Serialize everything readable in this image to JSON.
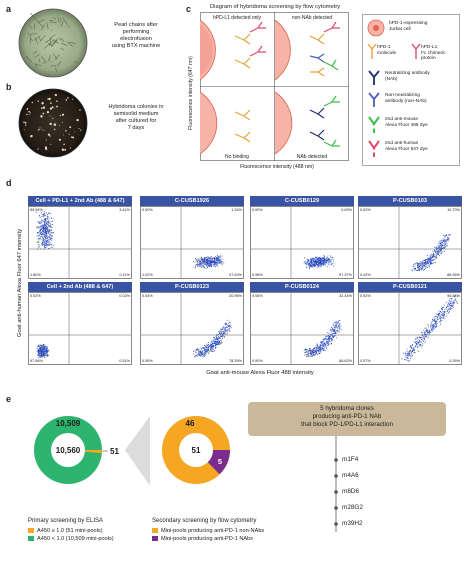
{
  "panel_a": {
    "label": "a",
    "caption": [
      "Pearl chains after",
      "performing",
      "electrofusion",
      "using BTX machine"
    ]
  },
  "panel_b": {
    "label": "b",
    "caption": [
      "Hybridoma colonies in",
      "semisolid medium",
      "after cultured for",
      "7 days"
    ]
  },
  "panel_c": {
    "label": "c",
    "title": "Diagram of hybridoma screening by flow cytometry",
    "quadrants": {
      "tl": "hPD-L1 detected only",
      "tr": "non-NAb detected",
      "bl": "No binding",
      "br": "NAb detected"
    },
    "ylabel": "Fluorescence intensity (647 nm)",
    "xlabel": "Fluorescence intensity (488 nm)",
    "legend": [
      {
        "icon": "jurkat-cell-icon",
        "text": [
          "hPD-1-expressing",
          "Jurkat cell"
        ]
      },
      {
        "icon": "pdl1-molecule-icon",
        "text": [
          "hPD-1",
          "molecule"
        ]
      },
      {
        "icon": "pdl1-fc-icon",
        "text": [
          "hPD-L1",
          "Fc chimeric",
          "protein"
        ]
      },
      {
        "icon": "nab-icon",
        "text": [
          "Neutralizing antibody",
          "(NAb)"
        ]
      },
      {
        "icon": "non-nab-icon",
        "text": [
          "Non-neutralizing",
          "antibody (non-NAb)"
        ]
      },
      {
        "icon": "anti-mouse-icon",
        "text": [
          "2nd anti-mouse",
          "Alexa Fluor 488 dye"
        ]
      },
      {
        "icon": "anti-human-icon",
        "text": [
          "2nd anti-human",
          "Alexa Fluor 647 dye"
        ]
      }
    ],
    "colors": {
      "cell": "#f08a7a",
      "cellEdge": "#e0634f",
      "pdl1": "#e04a6a",
      "nab": "#1f2f6b",
      "nonnab": "#4b5fb8",
      "green": "#3fbf4a",
      "orange": "#e8a13a"
    }
  },
  "panel_d": {
    "label": "d",
    "ylabel": "Goat anti-human Alexa Fluor 647 intensity",
    "xlabel": "Goat anti-mouse Alexa Fluor 488 intensity",
    "plots": [
      {
        "title": "Cell + PD-L1 + 2nd Ab (488 & 647)",
        "q": [
          "89.94%",
          "3.41%",
          "1.80%",
          "0.11%"
        ]
      },
      {
        "title": "C-CUSB1926",
        "q": [
          "0.00%",
          "1.34%",
          "1.02%",
          "97.63%"
        ]
      },
      {
        "title": "C-CUSB0129",
        "q": [
          "0.00%",
          "0.63%",
          "0.96%",
          "97.37%"
        ]
      },
      {
        "title": "P-CUSB0103",
        "q": [
          "0.92%",
          "10.70%",
          "0.42%",
          "88.96%"
        ]
      },
      {
        "title": "Cell + 2nd Ab (488 & 647)",
        "q": [
          "0.02%",
          "0.02%",
          "97.96%",
          "0.51%"
        ]
      },
      {
        "title": "P-CUSB0123",
        "q": [
          "0.04%",
          "20.96%",
          "0.59%",
          "78.39%"
        ]
      },
      {
        "title": "P-CUSB0124",
        "q": [
          "0.06%",
          "32.44%",
          "0.90%",
          "66.62%"
        ]
      },
      {
        "title": "P-CUSB0121",
        "q": [
          "0.92%",
          "96.84%",
          "0.57%",
          "0.26%"
        ]
      }
    ]
  },
  "panel_e": {
    "label": "e",
    "donut1": {
      "outer": "10,509",
      "center": "10,560",
      "callout": "51",
      "colors": {
        "green": "#2db46e",
        "orange": "#f5a623"
      }
    },
    "donut2": {
      "top": "46",
      "center": "51",
      "slice": "5",
      "colors": {
        "orange": "#f5a623",
        "purple": "#7a2d8c"
      }
    },
    "callout_box": [
      "5 hybridoma clones",
      "producing anti-PD-1 NAb",
      "that block PD-1/PD-L1 interaction"
    ],
    "clones": [
      "m1F4",
      "m4A6",
      "m8D6",
      "m28G2",
      "m39H2"
    ],
    "primary_title": "Primary screening by ELISA",
    "primary_legend": [
      {
        "text": "A450 ≥ 1.0 (51 mini-pools)",
        "color": "#f5a623"
      },
      {
        "text": "A450 < 1.0 (10,509 mini-pools)",
        "color": "#2db46e"
      }
    ],
    "secondary_title": "Secondary screening by flow cytometry",
    "secondary_legend": [
      {
        "text": "Mini-pools producing anti-PD-1 non-NAbs",
        "color": "#f5a623"
      },
      {
        "text": "Mini-pools producing anti-PD-1 NAbs",
        "color": "#7a2d8c"
      }
    ]
  }
}
